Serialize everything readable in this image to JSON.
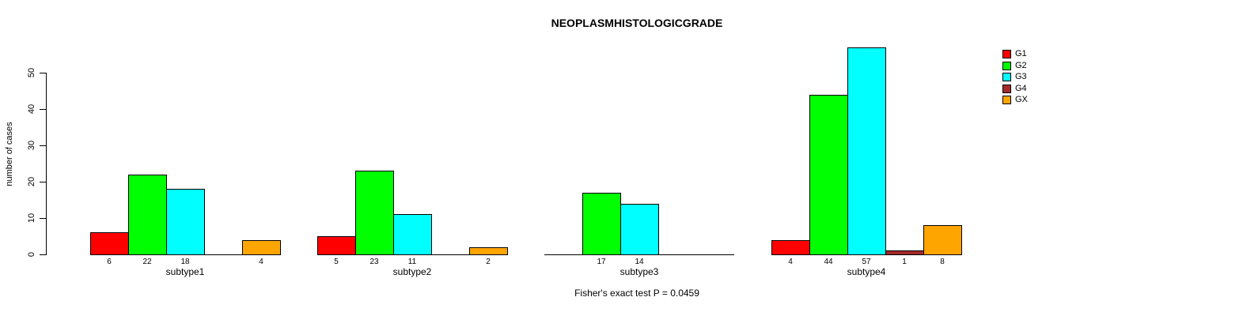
{
  "chart_data": {
    "type": "bar",
    "title": "NEOPLASMHISTOLOGICGRADE",
    "ylabel": "number of cases",
    "xlabel": "",
    "annotation": "Fisher's exact test P = 0.0459",
    "categories": [
      "subtype1",
      "subtype2",
      "subtype3",
      "subtype4"
    ],
    "series": [
      {
        "name": "G1",
        "color": "#FF0000",
        "values": [
          6,
          5,
          0,
          4
        ]
      },
      {
        "name": "G2",
        "color": "#00FF00",
        "values": [
          22,
          23,
          17,
          44
        ]
      },
      {
        "name": "G3",
        "color": "#00FFFF",
        "values": [
          18,
          11,
          14,
          57
        ]
      },
      {
        "name": "G4",
        "color": "#A52A2A",
        "values": [
          0,
          0,
          0,
          1
        ]
      },
      {
        "name": "GX",
        "color": "#FFA500",
        "values": [
          4,
          2,
          0,
          8
        ]
      }
    ],
    "ylim": [
      0,
      50
    ],
    "yticks": [
      0,
      10,
      20,
      30,
      40,
      50
    ],
    "grid": false,
    "bar_value_labels_shown_for_nonzero_only": true,
    "legend": {
      "position": "right",
      "entries": [
        {
          "label": "G1",
          "color": "#FF0000"
        },
        {
          "label": "G2",
          "color": "#00FF00"
        },
        {
          "label": "G3",
          "color": "#00FFFF"
        },
        {
          "label": "G4",
          "color": "#A52A2A"
        },
        {
          "label": "GX",
          "color": "#FFA500"
        }
      ]
    },
    "colors": {
      "bar_border": "#000000",
      "axis": "#000000",
      "text": "#000000",
      "background": "#FFFFFF"
    }
  }
}
